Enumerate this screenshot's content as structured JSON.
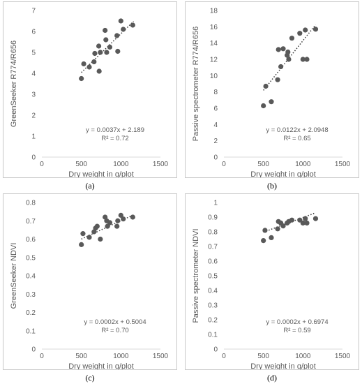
{
  "colors": {
    "point": "#595959",
    "trend": "#3a3a3a",
    "grid_text": "#595959",
    "axis": "#d9d9d9"
  },
  "chart_data": [
    {
      "type": "scatter",
      "panel_label": "(a)",
      "xlabel": "Dry weight in g/plot",
      "ylabel": "GreenSeeker R774/R656",
      "xlim": [
        0,
        1500
      ],
      "ylim": [
        0,
        7
      ],
      "xticks": [
        0,
        500,
        1000,
        1500
      ],
      "yticks": [
        0,
        1,
        2,
        3,
        4,
        5,
        6,
        7
      ],
      "x": [
        500,
        530,
        600,
        660,
        670,
        720,
        725,
        740,
        800,
        810,
        820,
        860,
        950,
        960,
        1000,
        1030,
        1150
      ],
      "y": [
        3.75,
        4.45,
        4.3,
        4.55,
        4.95,
        5.3,
        4.1,
        5.0,
        6.05,
        5.6,
        5.0,
        5.25,
        5.8,
        5.05,
        6.5,
        6.1,
        6.3
      ],
      "trendline": {
        "slope": 0.0037,
        "intercept": 2.189,
        "x_range": [
          500,
          1160
        ]
      },
      "equation": "y = 0.0037x + 2.189",
      "r2": "R² = 0.72"
    },
    {
      "type": "scatter",
      "panel_label": "(b)",
      "xlabel": "Dry weight in g/plot",
      "ylabel": "Passive spectrometer R774/R656",
      "xlim": [
        0,
        1500
      ],
      "ylim": [
        0,
        18
      ],
      "xticks": [
        0,
        500,
        1000,
        1500
      ],
      "yticks": [
        0,
        2,
        4,
        6,
        8,
        10,
        12,
        14,
        16,
        18
      ],
      "x": [
        500,
        530,
        600,
        680,
        690,
        720,
        750,
        800,
        810,
        820,
        860,
        960,
        1000,
        1030,
        1050,
        1160
      ],
      "y": [
        6.3,
        8.7,
        6.8,
        9.5,
        13.2,
        11.1,
        13.3,
        12.5,
        12.9,
        12.0,
        14.6,
        15.2,
        12.0,
        15.6,
        12.0,
        15.7
      ],
      "trendline": {
        "slope": 0.0122,
        "intercept": 2.0948,
        "x_range": [
          500,
          1160
        ]
      },
      "equation": "y = 0.0122x + 2.0948",
      "r2": "R² = 0.65"
    },
    {
      "type": "scatter",
      "panel_label": "(c)",
      "xlabel": "Dry weight in g/plot",
      "ylabel": "GreenSeeker NDVI",
      "xlim": [
        0,
        1500
      ],
      "ylim": [
        0,
        0.8
      ],
      "xticks": [
        0,
        500,
        1000,
        1500
      ],
      "yticks": [
        "0",
        "0.1",
        "0.2",
        "0.3",
        "0.4",
        "0.5",
        "0.6",
        "0.7",
        "0.8"
      ],
      "x": [
        500,
        520,
        600,
        660,
        680,
        700,
        740,
        800,
        820,
        830,
        860,
        950,
        960,
        1000,
        1030,
        1150
      ],
      "y": [
        0.57,
        0.63,
        0.61,
        0.64,
        0.66,
        0.67,
        0.6,
        0.72,
        0.7,
        0.67,
        0.69,
        0.67,
        0.7,
        0.73,
        0.71,
        0.72
      ],
      "trendline": {
        "slope": 0.0002,
        "intercept": 0.5004,
        "x_range": [
          500,
          1160
        ]
      },
      "equation": "y = 0.0002x + 0.5004",
      "r2": "R² = 0.70"
    },
    {
      "type": "scatter",
      "panel_label": "(d)",
      "xlabel": "Dry weight in g/plot",
      "ylabel": "Passive spectrometer NDVI",
      "xlim": [
        0,
        1500
      ],
      "ylim": [
        0,
        1
      ],
      "xticks": [
        0,
        500,
        1000,
        1500
      ],
      "yticks": [
        "0",
        "0.1",
        "0.2",
        "0.3",
        "0.4",
        "0.5",
        "0.6",
        "0.7",
        "0.8",
        "0.9",
        "1"
      ],
      "x": [
        500,
        520,
        600,
        680,
        690,
        720,
        750,
        800,
        820,
        860,
        960,
        1000,
        1030,
        1050,
        1160
      ],
      "y": [
        0.74,
        0.81,
        0.76,
        0.82,
        0.87,
        0.86,
        0.84,
        0.86,
        0.87,
        0.88,
        0.88,
        0.86,
        0.89,
        0.86,
        0.89
      ],
      "trendline": {
        "slope": 0.0002,
        "intercept": 0.6974,
        "x_range": [
          500,
          1160
        ]
      },
      "equation": "y = 0.0002x + 0.6974",
      "r2": "R² = 0.59"
    }
  ]
}
